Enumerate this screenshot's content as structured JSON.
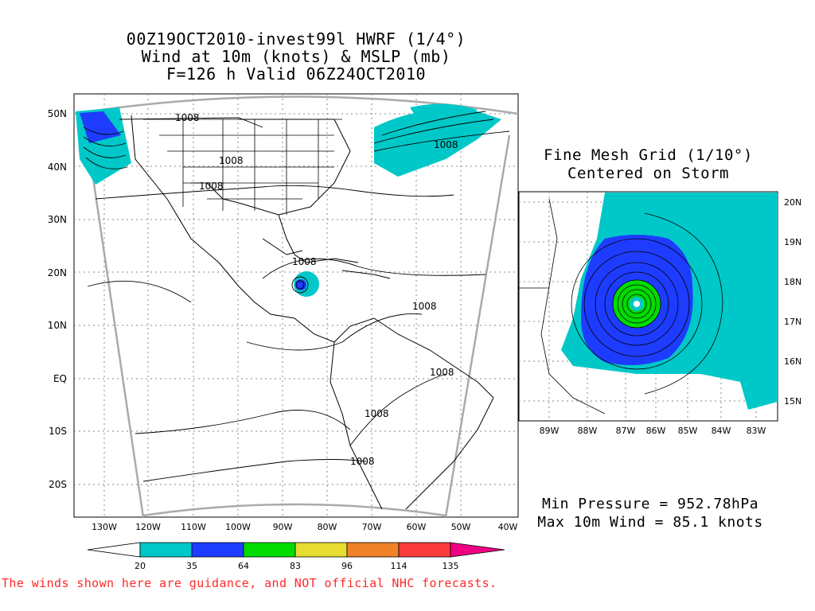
{
  "title": {
    "line1": "00Z19OCT2010-invest99l HWRF (1/4°)",
    "line2": "Wind at 10m (knots) & MSLP (mb)",
    "line3": "F=126 h Valid 06Z24OCT2010"
  },
  "main_map": {
    "lat_labels": [
      "50N",
      "40N",
      "30N",
      "20N",
      "10N",
      "EQ",
      "10S",
      "20S"
    ],
    "lon_labels": [
      "130W",
      "120W",
      "110W",
      "100W",
      "90W",
      "80W",
      "70W",
      "60W",
      "50W",
      "40W"
    ],
    "isobar_labels": [
      "1008",
      "1008",
      "1008",
      "1008",
      "1008",
      "1008",
      "1008",
      "1008",
      "1008"
    ]
  },
  "fine_mesh": {
    "title_line1": "Fine Mesh Grid (1/10°)",
    "title_line2": "Centered on Storm",
    "lat_labels": [
      "20N",
      "19N",
      "18N",
      "17N",
      "16N",
      "15N"
    ],
    "lon_labels": [
      "89W",
      "88W",
      "87W",
      "86W",
      "85W",
      "84W",
      "83W"
    ]
  },
  "stats": {
    "min_pressure": "Min Pressure = 952.78hPa",
    "max_wind": "Max 10m Wind = 85.1 knots"
  },
  "legend": {
    "thresholds": [
      "20",
      "35",
      "64",
      "83",
      "96",
      "114",
      "135"
    ],
    "colors": [
      "#00c8c8",
      "#1e3cff",
      "#00dc00",
      "#e6dc32",
      "#f08228",
      "#fa3c3c",
      "#f00082"
    ]
  },
  "disclaimer": "The winds shown here are guidance, and NOT official NHC forecasts."
}
